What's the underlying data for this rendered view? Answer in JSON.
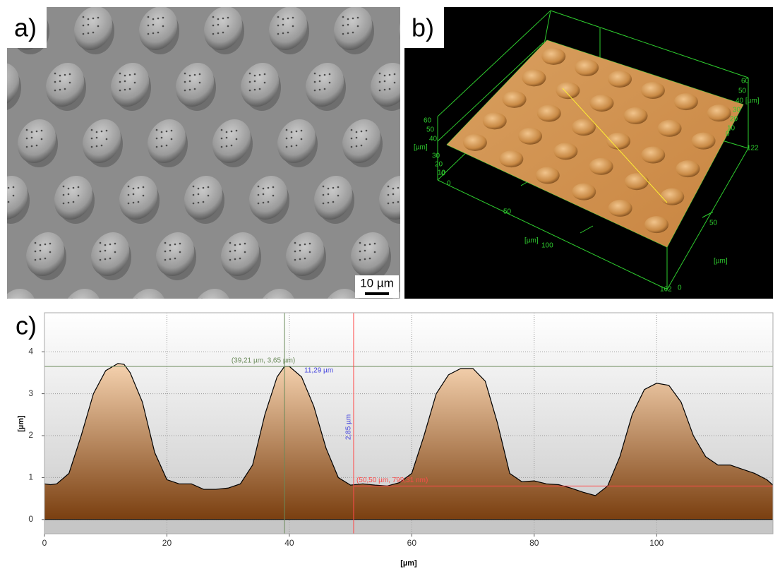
{
  "panels": {
    "a": {
      "label": "a)",
      "scale_bar": "10 µm"
    },
    "b": {
      "label": "b)",
      "axis_texts": [
        "60",
        "50",
        "40",
        "[µm]",
        "30",
        "20",
        "10",
        "0",
        "0",
        "60",
        "50",
        "40 [µm]",
        "30",
        "20",
        "10",
        "0",
        "122",
        "50",
        "[µm]",
        "100",
        "162",
        "50",
        "[µm]",
        "0"
      ]
    },
    "c": {
      "label": "c)"
    }
  },
  "chart_data": {
    "type": "area",
    "x_label": "[µm]",
    "y_label": "[µm]",
    "x": [
      0,
      1,
      2,
      4,
      6,
      8,
      10,
      12,
      13,
      14,
      16,
      18,
      20,
      22,
      24,
      26,
      28,
      30,
      32,
      34,
      36,
      38,
      39.21,
      40,
      42,
      44,
      46,
      48,
      50,
      52,
      54,
      56,
      58,
      60,
      62,
      64,
      66,
      68,
      70,
      72,
      74,
      76,
      78,
      80,
      82,
      84,
      86,
      88,
      90,
      92,
      94,
      96,
      98,
      100,
      102,
      104,
      106,
      108,
      110,
      112,
      114,
      116,
      118,
      119
    ],
    "values": [
      0.85,
      0.83,
      0.85,
      1.1,
      2.0,
      3.0,
      3.55,
      3.72,
      3.7,
      3.5,
      2.8,
      1.6,
      0.95,
      0.85,
      0.85,
      0.72,
      0.72,
      0.75,
      0.85,
      1.3,
      2.5,
      3.4,
      3.65,
      3.65,
      3.4,
      2.7,
      1.7,
      1.0,
      0.82,
      0.85,
      0.82,
      0.8,
      0.88,
      1.1,
      2.0,
      3.0,
      3.45,
      3.6,
      3.6,
      3.3,
      2.3,
      1.1,
      0.9,
      0.92,
      0.85,
      0.83,
      0.75,
      0.65,
      0.57,
      0.8,
      1.5,
      2.5,
      3.1,
      3.25,
      3.2,
      2.8,
      2.0,
      1.5,
      1.3,
      1.3,
      1.2,
      1.1,
      0.95,
      0.82
    ],
    "color": "#000000",
    "xlim": [
      0,
      119
    ],
    "ylim": [
      -0.34,
      4.93
    ],
    "xticks": [
      0,
      20,
      40,
      60,
      80,
      100
    ],
    "yticks": [
      0,
      1,
      2,
      3,
      4
    ],
    "grid": true,
    "cursors": [
      {
        "x": 39.21,
        "y": 3.65,
        "color": "#6a8a5a",
        "label": "(39,21 µm, 3,65 µm)"
      },
      {
        "x": 50.5,
        "y": 0.79931,
        "color": "#ff4a4a",
        "label": "(50,50 µm, 799,31 nm)"
      }
    ],
    "annotations": [
      "11,29 µm",
      "2,85 µm"
    ]
  }
}
